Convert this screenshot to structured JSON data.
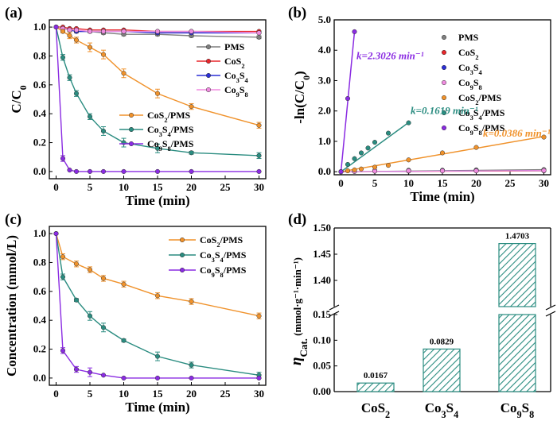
{
  "colors": {
    "PMS": "#7f7f7f",
    "CoS2": "#e8262b",
    "Co3S4": "#2b2fd6",
    "Co9S8": "#f08ce0",
    "CoS2/PMS": "#f0922b",
    "Co3S4/PMS": "#2a8c80",
    "Co9S8/PMS": "#8a2be2"
  },
  "chart_data": [
    {
      "panel": "(a)",
      "type": "line",
      "xlabel": "Time (min)",
      "ylabel": "C/C0",
      "xlim": [
        -1,
        31
      ],
      "ylim": [
        -0.05,
        1.05
      ],
      "xticks": [
        "0",
        "5",
        "10",
        "15",
        "20",
        "25",
        "30"
      ],
      "yticks": [
        "0.0",
        "0.2",
        "0.4",
        "0.6",
        "0.8",
        "1.0"
      ],
      "legend_top": [
        "PMS",
        "CoS2",
        "Co3S4",
        "Co9S8"
      ],
      "legend_mid": [
        "CoS2/PMS",
        "Co3S4/PMS",
        "Co9S8/PMS"
      ],
      "series": [
        {
          "name": "PMS",
          "x": [
            0,
            1,
            2,
            3,
            5,
            7,
            10,
            15,
            20,
            30
          ],
          "y": [
            1.0,
            0.99,
            0.98,
            0.97,
            0.97,
            0.96,
            0.95,
            0.95,
            0.94,
            0.93
          ],
          "err": [
            0,
            0.01,
            0.01,
            0.01,
            0.01,
            0.01,
            0.01,
            0.01,
            0.01,
            0.01
          ]
        },
        {
          "name": "CoS2",
          "x": [
            0,
            1,
            2,
            3,
            5,
            7,
            10,
            15,
            20,
            30
          ],
          "y": [
            1.0,
            1.0,
            0.99,
            0.99,
            0.98,
            0.98,
            0.98,
            0.97,
            0.97,
            0.97
          ],
          "err": [
            0,
            0,
            0,
            0,
            0,
            0,
            0,
            0,
            0,
            0
          ]
        },
        {
          "name": "Co3S4",
          "x": [
            0,
            1,
            2,
            3,
            5,
            7,
            10,
            15,
            20,
            30
          ],
          "y": [
            1.0,
            0.99,
            0.98,
            0.97,
            0.97,
            0.97,
            0.97,
            0.96,
            0.96,
            0.96
          ],
          "err": [
            0,
            0,
            0,
            0,
            0,
            0,
            0,
            0,
            0,
            0
          ]
        },
        {
          "name": "Co9S8",
          "x": [
            0,
            1,
            2,
            3,
            5,
            7,
            10,
            15,
            20,
            30
          ],
          "y": [
            1.0,
            0.99,
            0.98,
            0.98,
            0.97,
            0.97,
            0.97,
            0.97,
            0.97,
            0.96
          ],
          "err": [
            0,
            0,
            0,
            0,
            0,
            0,
            0,
            0,
            0,
            0
          ]
        },
        {
          "name": "CoS2/PMS",
          "x": [
            0,
            1,
            2,
            3,
            5,
            7,
            10,
            15,
            20,
            30
          ],
          "y": [
            1.0,
            0.97,
            0.94,
            0.91,
            0.86,
            0.81,
            0.68,
            0.54,
            0.45,
            0.32
          ],
          "err": [
            0,
            0.01,
            0.02,
            0.02,
            0.03,
            0.03,
            0.03,
            0.03,
            0.02,
            0.02
          ]
        },
        {
          "name": "Co3S4/PMS",
          "x": [
            0,
            1,
            2,
            3,
            5,
            7,
            10,
            15,
            20,
            30
          ],
          "y": [
            1.0,
            0.79,
            0.65,
            0.54,
            0.38,
            0.28,
            0.2,
            0.16,
            0.13,
            0.11
          ],
          "err": [
            0,
            0.02,
            0.02,
            0.02,
            0.02,
            0.03,
            0.03,
            0.03,
            0.01,
            0.02
          ]
        },
        {
          "name": "Co9S8/PMS",
          "x": [
            0,
            1,
            2,
            3,
            5,
            7,
            10,
            15,
            20,
            30
          ],
          "y": [
            1.0,
            0.09,
            0.01,
            0.0,
            0.0,
            0.0,
            0.0,
            0.0,
            0.0,
            0.0
          ],
          "err": [
            0,
            0.02,
            0,
            0,
            0,
            0,
            0,
            0,
            0,
            0
          ]
        }
      ]
    },
    {
      "panel": "(b)",
      "type": "scatter",
      "xlabel": "Time (min)",
      "ylabel": "-ln(C/C0)",
      "xlim": [
        -1,
        31
      ],
      "ylim": [
        -0.1,
        5.0
      ],
      "xticks": [
        "0",
        "5",
        "10",
        "15",
        "20",
        "25",
        "30"
      ],
      "yticks": [
        "0.0",
        "1.0",
        "2.0",
        "3.0",
        "4.0",
        "5.0"
      ],
      "legend": [
        "PMS",
        "CoS2",
        "Co3S4",
        "Co9S8",
        "CoS2/PMS",
        "Co3S4/PMS",
        "Co9S8/PMS"
      ],
      "series": [
        {
          "name": "PMS",
          "x": [
            0,
            2,
            5,
            10,
            15,
            20,
            30
          ],
          "y": [
            0,
            0.02,
            0.03,
            0.05,
            0.05,
            0.06,
            0.07
          ],
          "fit": null
        },
        {
          "name": "CoS2",
          "x": [
            0,
            2,
            5,
            10,
            15,
            20,
            30
          ],
          "y": [
            0,
            0.01,
            0.02,
            0.02,
            0.03,
            0.03,
            0.03
          ],
          "fit": null
        },
        {
          "name": "Co3S4",
          "x": [
            0,
            2,
            5,
            10,
            15,
            20,
            30
          ],
          "y": [
            0,
            0.02,
            0.03,
            0.03,
            0.04,
            0.04,
            0.04
          ],
          "fit": null
        },
        {
          "name": "Co9S8",
          "x": [
            0,
            2,
            5,
            10,
            15,
            20,
            30
          ],
          "y": [
            0,
            0.01,
            0.02,
            0.03,
            0.03,
            0.03,
            0.04
          ],
          "fit": null
        },
        {
          "name": "CoS2/PMS",
          "x": [
            0,
            1,
            2,
            3,
            5,
            7,
            10,
            15,
            20,
            30
          ],
          "y": [
            0,
            0.03,
            0.06,
            0.09,
            0.15,
            0.21,
            0.39,
            0.62,
            0.8,
            1.14
          ],
          "fit": [
            [
              0,
              0.0
            ],
            [
              30,
              1.16
            ]
          ]
        },
        {
          "name": "Co3S4/PMS",
          "x": [
            0,
            1,
            2,
            3,
            4,
            5,
            7,
            10
          ],
          "y": [
            0,
            0.24,
            0.43,
            0.62,
            0.78,
            0.97,
            1.27,
            1.61
          ],
          "fit": [
            [
              0,
              0.0
            ],
            [
              10,
              1.62
            ]
          ]
        },
        {
          "name": "Co9S8/PMS",
          "x": [
            0,
            1,
            2
          ],
          "y": [
            0,
            2.41,
            4.61
          ],
          "fit": [
            [
              0,
              0.0
            ],
            [
              2,
              4.61
            ]
          ]
        }
      ],
      "annotations": [
        {
          "text": "k=2.3026 min⁻¹",
          "color_key": "Co9S8/PMS",
          "at": [
            2.3,
            3.7
          ]
        },
        {
          "text": "k=0.1619 min⁻¹",
          "color_key": "Co3S4/PMS",
          "at": [
            10.3,
            1.9
          ]
        },
        {
          "text": "k=0.0386 min⁻¹",
          "color_key": "CoS2/PMS",
          "at": [
            21.0,
            1.15
          ]
        }
      ]
    },
    {
      "panel": "(c)",
      "type": "line",
      "xlabel": "Time (min)",
      "ylabel": "Concentration (mmol/L)",
      "xlim": [
        -1,
        31
      ],
      "ylim": [
        -0.05,
        1.05
      ],
      "xticks": [
        "0",
        "5",
        "10",
        "15",
        "20",
        "25",
        "30"
      ],
      "yticks": [
        "0.0",
        "0.2",
        "0.4",
        "0.6",
        "0.8",
        "1.0"
      ],
      "legend": [
        "CoS2/PMS",
        "Co3S4/PMS",
        "Co9S8/PMS"
      ],
      "series": [
        {
          "name": "CoS2/PMS",
          "x": [
            0,
            1,
            3,
            5,
            7,
            10,
            15,
            20,
            30
          ],
          "y": [
            1.0,
            0.84,
            0.79,
            0.75,
            0.69,
            0.65,
            0.57,
            0.53,
            0.43
          ],
          "err": [
            0,
            0.02,
            0.02,
            0.02,
            0.02,
            0.02,
            0.02,
            0.02,
            0.02
          ]
        },
        {
          "name": "Co3S4/PMS",
          "x": [
            0,
            1,
            3,
            5,
            7,
            10,
            15,
            20,
            30
          ],
          "y": [
            1.0,
            0.7,
            0.54,
            0.43,
            0.35,
            0.26,
            0.15,
            0.09,
            0.02
          ],
          "err": [
            0,
            0.02,
            0.01,
            0.03,
            0.03,
            0.01,
            0.03,
            0.02,
            0.02
          ]
        },
        {
          "name": "Co9S8/PMS",
          "x": [
            0,
            1,
            3,
            5,
            7,
            10,
            15,
            20,
            30
          ],
          "y": [
            1.0,
            0.19,
            0.06,
            0.04,
            0.02,
            0.0,
            0.0,
            0.0,
            0.0
          ],
          "err": [
            0,
            0.02,
            0.02,
            0.03,
            0,
            0,
            0,
            0,
            0
          ]
        }
      ]
    },
    {
      "panel": "(d)",
      "type": "bar",
      "ylabel": "ηCat. (mmol·g⁻¹·min⁻¹)",
      "y_eta": "η",
      "y_rest": "Cat.",
      "y_unit": "(mmol·g⁻¹·min⁻¹)",
      "categories": [
        "CoS2",
        "Co3S4",
        "Co9S8"
      ],
      "values": [
        0.0167,
        0.0829,
        1.4703
      ],
      "value_labels": [
        "0.0167",
        "0.0829",
        "1.4703"
      ],
      "axis_break": true,
      "lower_ylim": [
        0.0,
        0.15
      ],
      "upper_ylim": [
        1.35,
        1.5
      ],
      "lower_yticks": [
        "0.00",
        "0.05",
        "0.10",
        "0.15"
      ],
      "upper_yticks": [
        "1.40",
        "1.45",
        "1.50"
      ]
    }
  ]
}
